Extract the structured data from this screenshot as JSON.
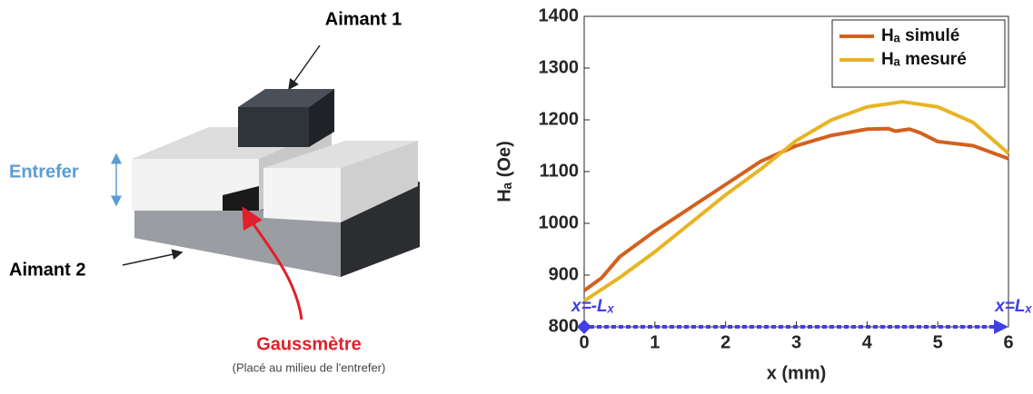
{
  "figure": {
    "labels": [
      "Aimant 1",
      "Entrefer",
      "Aimant 2",
      "Gaussmètre",
      "(Placé au milieu de l'entrefer)"
    ]
  },
  "chart_data": {
    "type": "line",
    "x_label": "x (mm)",
    "y_label": "Hₐ (Oe)",
    "annotations": [
      "x=-Lₓ",
      "x=Lₓ"
    ],
    "xlim": [
      0,
      6
    ],
    "xticks": [
      0,
      1,
      2,
      3,
      4,
      5,
      6
    ],
    "ylim": [
      800,
      1400
    ],
    "yticks": [
      800,
      900,
      1000,
      1100,
      1200,
      1300,
      1400
    ],
    "grid": false,
    "legend": "upper right",
    "series": [
      {
        "name": "Hₐ simulé",
        "color": "#d3601f",
        "x": [
          0,
          0.25,
          0.5,
          1,
          1.5,
          2,
          2.5,
          3,
          3.5,
          4,
          4.3,
          4.4,
          4.6,
          4.75,
          5,
          5.5,
          6
        ],
        "values": [
          870,
          895,
          935,
          985,
          1030,
          1075,
          1120,
          1150,
          1170,
          1182,
          1183,
          1178,
          1182,
          1175,
          1158,
          1150,
          1125
        ]
      },
      {
        "name": "Hₐ mesuré",
        "color": "#e8b424",
        "x": [
          0,
          0.5,
          1,
          1.5,
          2,
          2.5,
          3,
          3.5,
          4,
          4.5,
          5,
          5.5,
          6
        ],
        "values": [
          850,
          895,
          945,
          1000,
          1055,
          1105,
          1160,
          1200,
          1225,
          1235,
          1225,
          1195,
          1135
        ]
      }
    ]
  }
}
